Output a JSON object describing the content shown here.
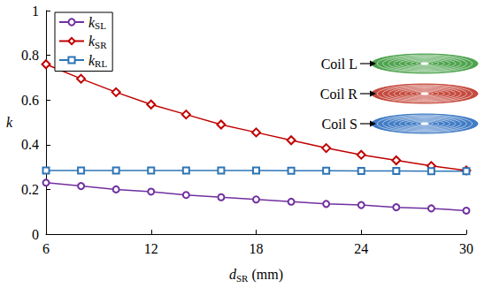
{
  "chart_data": {
    "type": "line",
    "x_label": "dSR (mm)",
    "y_label": "k",
    "x": [
      6,
      8,
      10,
      12,
      14,
      16,
      18,
      20,
      22,
      24,
      26,
      28,
      30
    ],
    "series": [
      {
        "name": "kSL",
        "color": "#7030a0",
        "marker": "circle",
        "values": [
          0.23,
          0.215,
          0.2,
          0.19,
          0.175,
          0.165,
          0.155,
          0.145,
          0.135,
          0.13,
          0.12,
          0.115,
          0.105
        ]
      },
      {
        "name": "kSR",
        "color": "#c00000",
        "marker": "diamond",
        "values": [
          0.76,
          0.695,
          0.635,
          0.58,
          0.535,
          0.49,
          0.455,
          0.42,
          0.385,
          0.355,
          0.33,
          0.305,
          0.285
        ]
      },
      {
        "name": "kRL",
        "color": "#2e75b6",
        "marker": "square",
        "values": [
          0.285,
          0.285,
          0.285,
          0.285,
          0.285,
          0.285,
          0.285,
          0.284,
          0.284,
          0.283,
          0.283,
          0.282,
          0.282
        ]
      }
    ],
    "xlim": [
      6,
      30
    ],
    "xticks": [
      6,
      12,
      18,
      24,
      30
    ],
    "ylim": [
      0,
      1
    ],
    "yticks": [
      0,
      0.2,
      0.4,
      0.6,
      0.8,
      1
    ],
    "grid": false,
    "legend": "upper left",
    "annotations": [
      {
        "text": "Coil L",
        "color": "#3c9a3c"
      },
      {
        "text": "Coil R",
        "color": "#c0392b"
      },
      {
        "text": "Coil S",
        "color": "#2e6fc0"
      }
    ]
  }
}
